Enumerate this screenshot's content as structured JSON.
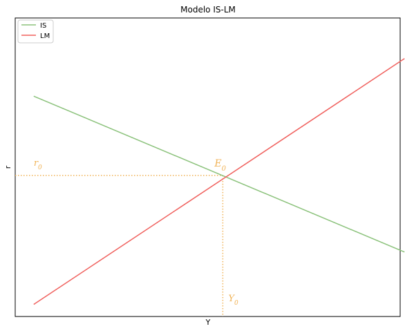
{
  "chart_data": {
    "type": "line",
    "title": "Modelo IS-LM",
    "xlabel": "Y",
    "ylabel": "r",
    "xlim": [
      0,
      10
    ],
    "ylim": [
      0,
      10
    ],
    "grid": false,
    "show_ticks": false,
    "legend_position": "top-left",
    "series": [
      {
        "name": "IS",
        "color": "#8bc27b",
        "x": [
          0.5,
          10.5
        ],
        "y": [
          8.2,
          2.4
        ]
      },
      {
        "name": "LM",
        "color": "#f0605d",
        "x": [
          0.5,
          10.5
        ],
        "y": [
          0.45,
          9.6
        ]
      }
    ],
    "equilibrium": {
      "x": 5.6,
      "y": 5.25,
      "color": "#f0b255"
    },
    "annotations": {
      "point_label": {
        "base": "E",
        "sub": "0"
      },
      "y_label": {
        "base": "r",
        "sub": "0"
      },
      "x_label": {
        "base": "Y",
        "sub": "0"
      }
    }
  }
}
